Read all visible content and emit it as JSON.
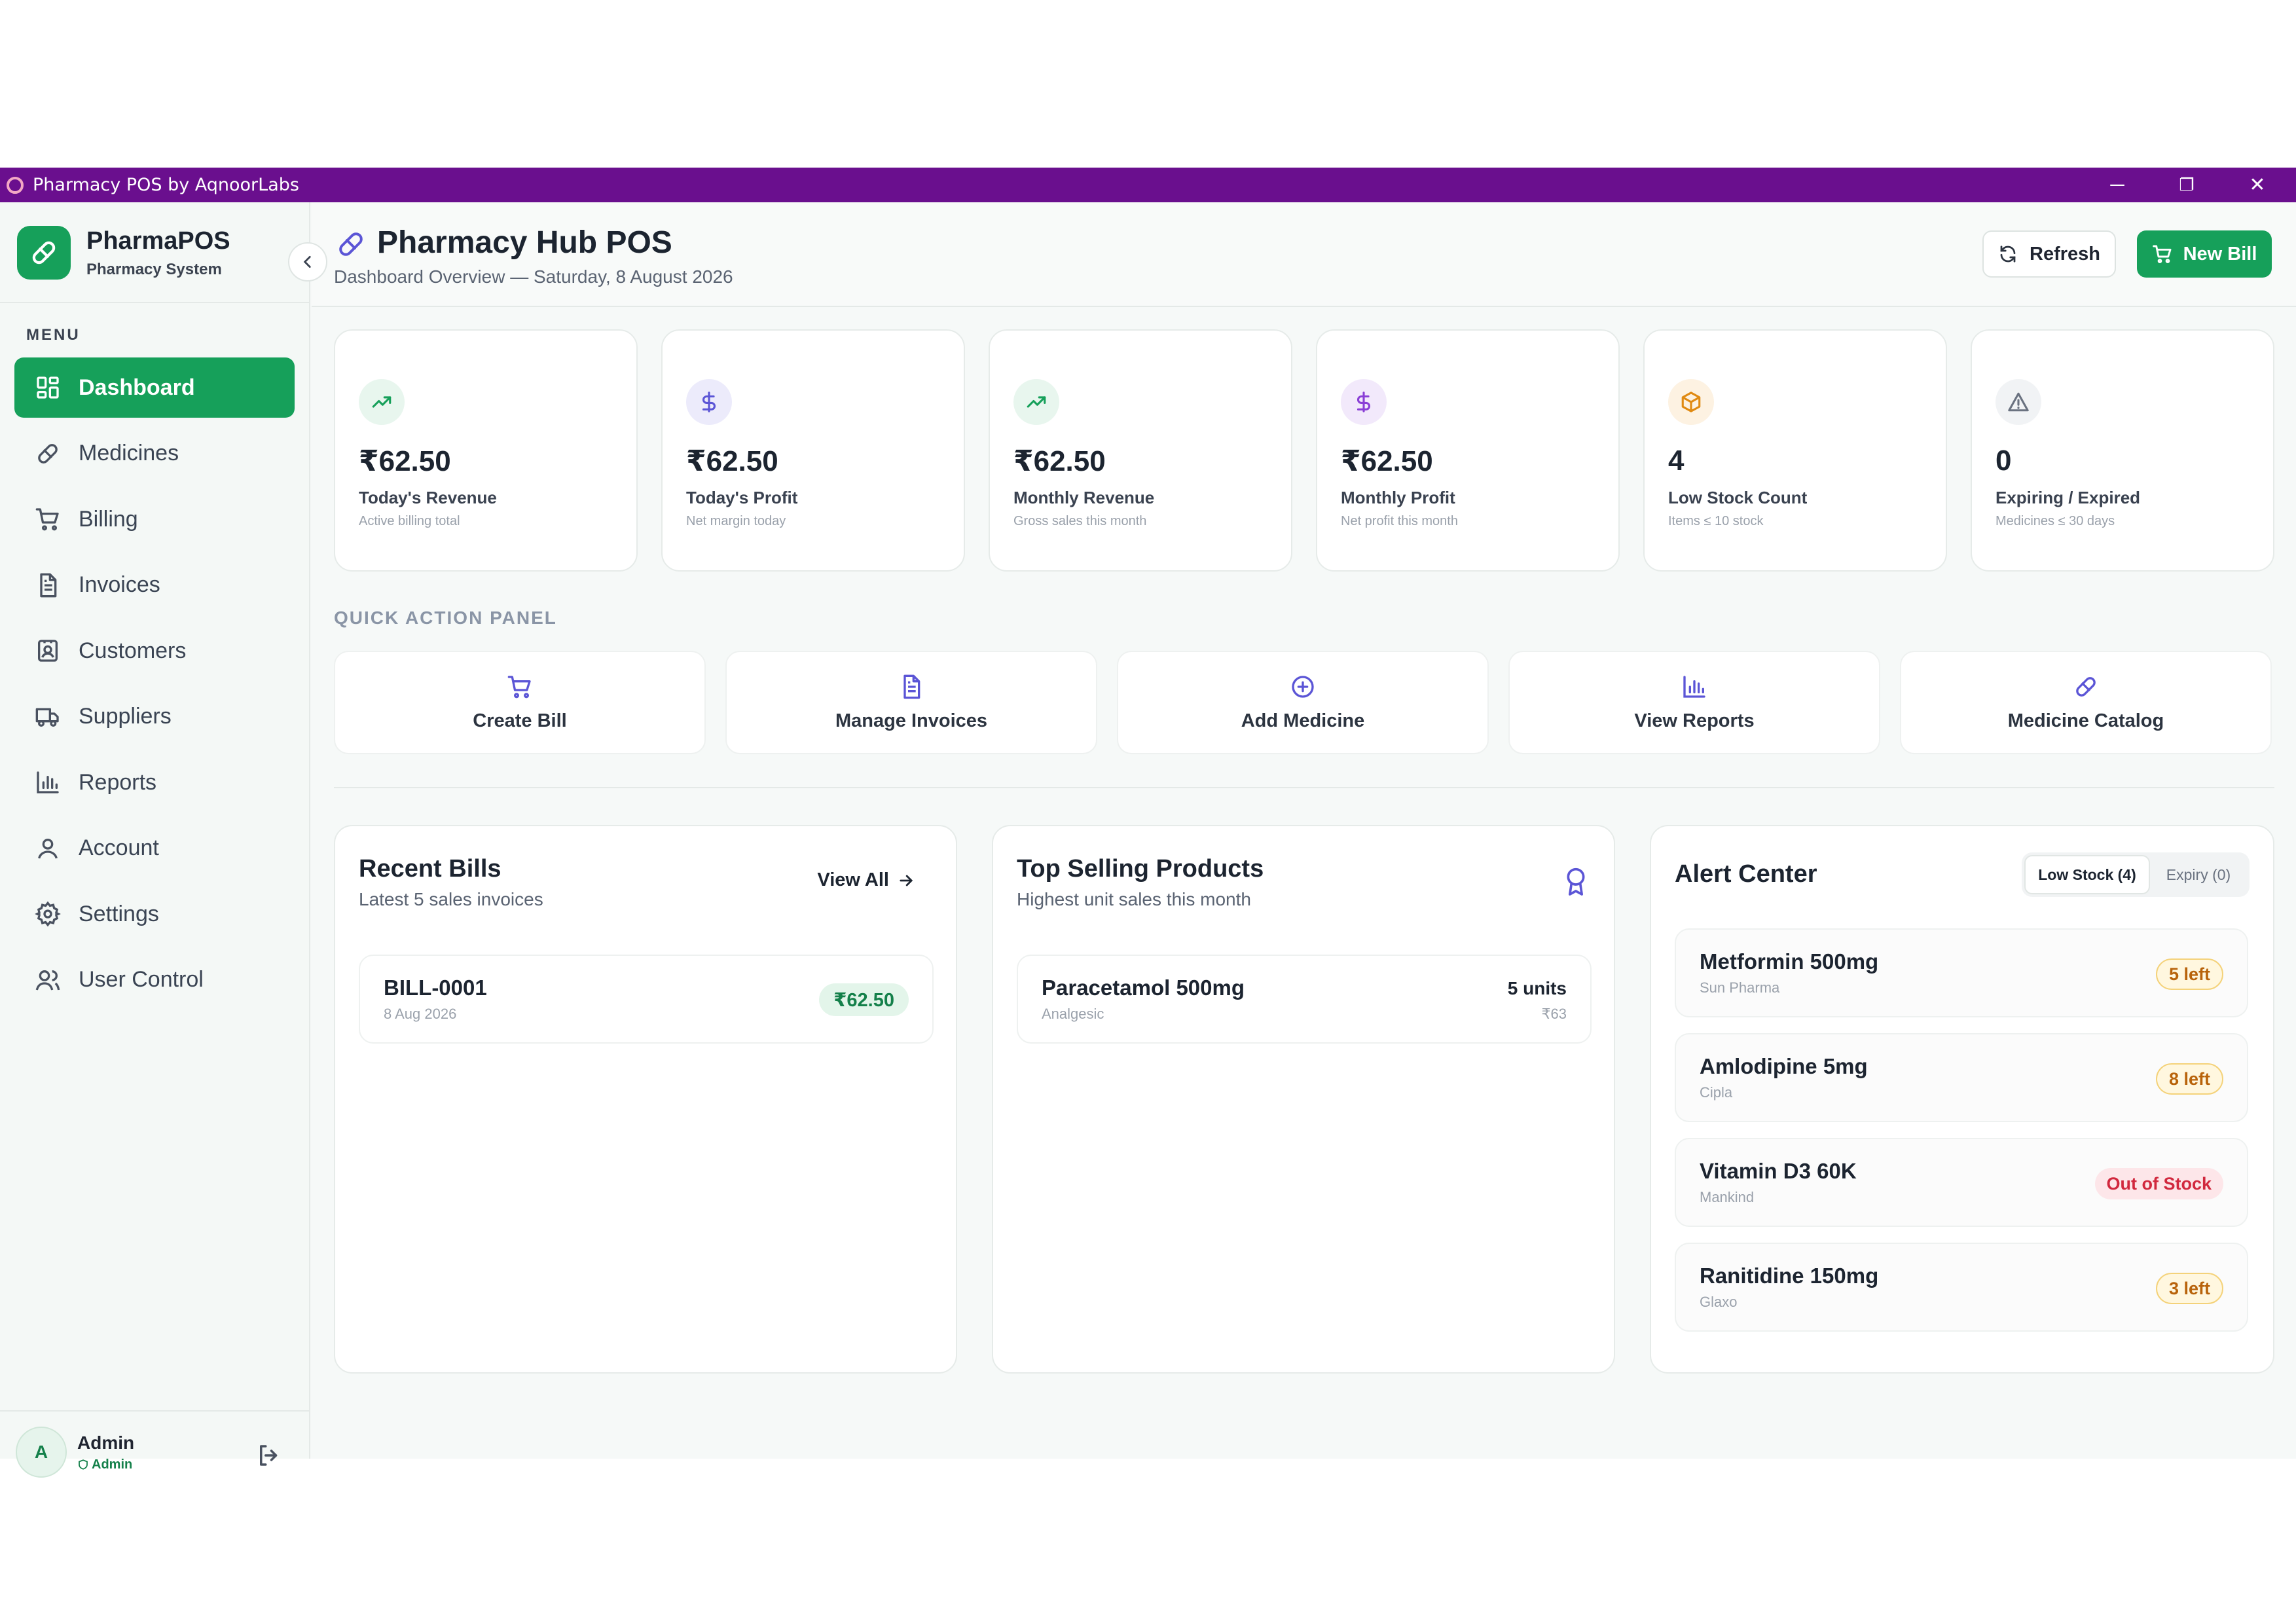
{
  "window": {
    "title": "Pharmacy POS by AqnoorLabs",
    "minimize": "─",
    "restore": "❐",
    "close": "✕"
  },
  "brand": {
    "name": "PharmaPOS",
    "subtitle": "Pharmacy System"
  },
  "menu_label": "MENU",
  "nav": [
    {
      "label": "Dashboard",
      "icon": "dashboard-icon",
      "active": true
    },
    {
      "label": "Medicines",
      "icon": "pill-icon"
    },
    {
      "label": "Billing",
      "icon": "cart-icon"
    },
    {
      "label": "Invoices",
      "icon": "document-icon"
    },
    {
      "label": "Customers",
      "icon": "contact-icon"
    },
    {
      "label": "Suppliers",
      "icon": "truck-icon"
    },
    {
      "label": "Reports",
      "icon": "bar-chart-icon"
    },
    {
      "label": "Account",
      "icon": "user-icon"
    },
    {
      "label": "Settings",
      "icon": "gear-icon"
    },
    {
      "label": "User Control",
      "icon": "users-icon"
    }
  ],
  "user": {
    "initial": "A",
    "name": "Admin",
    "role": "Admin"
  },
  "header": {
    "title": "Pharmacy Hub POS",
    "subtitle": "Dashboard Overview — Saturday, 8 August 2026",
    "refresh_label": "Refresh",
    "new_bill_label": "New Bill"
  },
  "stats": [
    {
      "value": "₹62.50",
      "label": "Today's Revenue",
      "note": "Active billing total",
      "icon": "trending-up-icon",
      "color": "#16a05a",
      "bg": "#e8f6ee"
    },
    {
      "value": "₹62.50",
      "label": "Today's Profit",
      "note": "Net margin today",
      "icon": "dollar-icon",
      "color": "#5b55d6",
      "bg": "#ecebfb"
    },
    {
      "value": "₹62.50",
      "label": "Monthly Revenue",
      "note": "Gross sales this month",
      "icon": "trending-up-icon",
      "color": "#16a05a",
      "bg": "#e8f6ee"
    },
    {
      "value": "₹62.50",
      "label": "Monthly Profit",
      "note": "Net profit this month",
      "icon": "dollar-icon",
      "color": "#8a3fd6",
      "bg": "#f2e9fb"
    },
    {
      "value": "4",
      "label": "Low Stock Count",
      "note": "Items ≤ 10 stock",
      "icon": "box-icon",
      "color": "#e08a12",
      "bg": "#fdf2e2"
    },
    {
      "value": "0",
      "label": "Expiring / Expired",
      "note": "Medicines ≤ 30 days",
      "icon": "warning-icon",
      "color": "#6a7280",
      "bg": "#f1f3f5"
    }
  ],
  "quick_actions": {
    "label": "QUICK ACTION PANEL",
    "items": [
      {
        "label": "Create Bill",
        "icon": "cart-icon"
      },
      {
        "label": "Manage Invoices",
        "icon": "document-icon"
      },
      {
        "label": "Add Medicine",
        "icon": "plus-circle-icon"
      },
      {
        "label": "View Reports",
        "icon": "bar-chart-icon"
      },
      {
        "label": "Medicine Catalog",
        "icon": "pill-icon"
      }
    ],
    "accent": "#5b55d6"
  },
  "recent_bills": {
    "title": "Recent Bills",
    "subtitle": "Latest 5 sales invoices",
    "view_all": "View All",
    "items": [
      {
        "id": "BILL-0001",
        "date": "8 Aug 2026",
        "amount": "₹62.50"
      }
    ]
  },
  "top_selling": {
    "title": "Top Selling Products",
    "subtitle": "Highest unit sales this month",
    "items": [
      {
        "name": "Paracetamol 500mg",
        "category": "Analgesic",
        "units": "5 units",
        "amount": "₹63"
      }
    ]
  },
  "alert_center": {
    "title": "Alert Center",
    "tabs": [
      {
        "label": "Low Stock (4)",
        "active": true
      },
      {
        "label": "Expiry (0)"
      }
    ],
    "items": [
      {
        "name": "Metformin 500mg",
        "maker": "Sun Pharma",
        "status": "5 left",
        "kind": "warn"
      },
      {
        "name": "Amlodipine 5mg",
        "maker": "Cipla",
        "status": "8 left",
        "kind": "warn"
      },
      {
        "name": "Vitamin D3 60K",
        "maker": "Mankind",
        "status": "Out of Stock",
        "kind": "danger"
      },
      {
        "name": "Ranitidine 150mg",
        "maker": "Glaxo",
        "status": "3 left",
        "kind": "warn"
      }
    ]
  },
  "colors": {
    "titlebar": "#6a0f8e",
    "primary": "#16a05a",
    "accent": "#5b55d6"
  }
}
